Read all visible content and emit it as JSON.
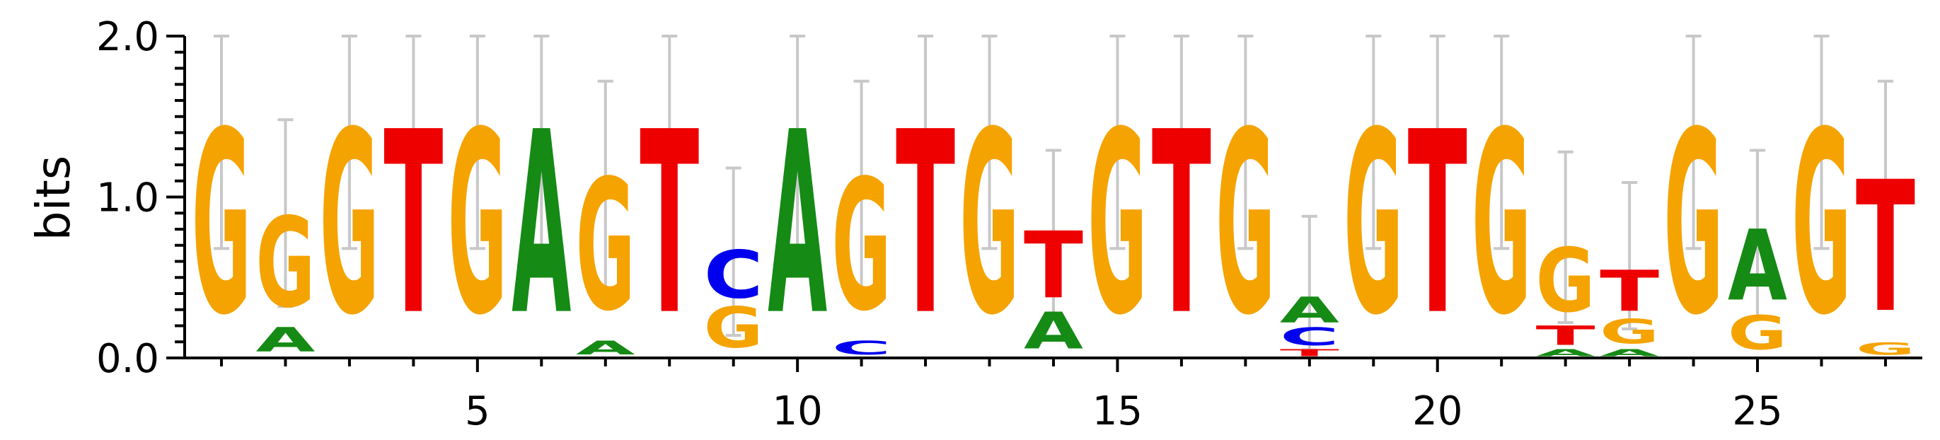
{
  "chart_data": {
    "type": "sequence-logo",
    "ylabel": "bits",
    "ylim": [
      0,
      2.0
    ],
    "yticks": [
      "0.0",
      "1.0",
      "2.0"
    ],
    "xticks": [
      "5",
      "10",
      "15",
      "20",
      "25"
    ],
    "xtick_values": [
      5,
      10,
      15,
      20,
      25
    ],
    "num_positions": 27,
    "colors": {
      "A": "#158a15",
      "C": "#0000ee",
      "G": "#f5a300",
      "T": "#ee0000",
      "error_bar": "#c8c8c8"
    },
    "positions": [
      {
        "pos": 1,
        "letters": [
          {
            "l": "G",
            "h": 1.34
          }
        ],
        "err": [
          0.68,
          2.0
        ]
      },
      {
        "pos": 2,
        "letters": [
          {
            "l": "A",
            "h": 0.18
          },
          {
            "l": "G",
            "h": 0.66
          }
        ],
        "err": [
          0.32,
          1.48
        ]
      },
      {
        "pos": 3,
        "letters": [
          {
            "l": "G",
            "h": 1.34
          }
        ],
        "err": [
          0.68,
          2.0
        ]
      },
      {
        "pos": 4,
        "letters": [
          {
            "l": "T",
            "h": 1.34
          }
        ],
        "err": [
          0.68,
          2.0
        ]
      },
      {
        "pos": 5,
        "letters": [
          {
            "l": "G",
            "h": 1.34
          }
        ],
        "err": [
          0.68,
          2.0
        ]
      },
      {
        "pos": 6,
        "letters": [
          {
            "l": "A",
            "h": 1.34
          }
        ],
        "err": [
          0.68,
          2.0
        ]
      },
      {
        "pos": 7,
        "letters": [
          {
            "l": "A",
            "h": 0.1
          },
          {
            "l": "G",
            "h": 0.96
          }
        ],
        "err": [
          0.42,
          1.72
        ]
      },
      {
        "pos": 8,
        "letters": [
          {
            "l": "T",
            "h": 1.34
          }
        ],
        "err": [
          0.68,
          2.0
        ]
      },
      {
        "pos": 9,
        "letters": [
          {
            "l": "G",
            "h": 0.3
          },
          {
            "l": "C",
            "h": 0.35
          }
        ],
        "err": [
          0.14,
          1.18
        ]
      },
      {
        "pos": 10,
        "letters": [
          {
            "l": "A",
            "h": 1.34
          }
        ],
        "err": [
          0.68,
          2.0
        ]
      },
      {
        "pos": 11,
        "letters": [
          {
            "l": "C",
            "h": 0.1
          },
          {
            "l": "G",
            "h": 0.96
          }
        ],
        "err": [
          0.42,
          1.72
        ]
      },
      {
        "pos": 12,
        "letters": [
          {
            "l": "T",
            "h": 1.34
          }
        ],
        "err": [
          0.68,
          2.0
        ]
      },
      {
        "pos": 13,
        "letters": [
          {
            "l": "G",
            "h": 1.34
          }
        ],
        "err": [
          0.68,
          2.0
        ]
      },
      {
        "pos": 14,
        "letters": [
          {
            "l": "A",
            "h": 0.27
          },
          {
            "l": "T",
            "h": 0.49
          }
        ],
        "err": [
          0.25,
          1.29
        ]
      },
      {
        "pos": 15,
        "letters": [
          {
            "l": "G",
            "h": 1.34
          }
        ],
        "err": [
          0.68,
          2.0
        ]
      },
      {
        "pos": 16,
        "letters": [
          {
            "l": "T",
            "h": 1.34
          }
        ],
        "err": [
          0.68,
          2.0
        ]
      },
      {
        "pos": 17,
        "letters": [
          {
            "l": "G",
            "h": 1.34
          }
        ],
        "err": [
          0.68,
          2.0
        ]
      },
      {
        "pos": 18,
        "letters": [
          {
            "l": "T",
            "h": 0.05
          },
          {
            "l": "C",
            "h": 0.13
          },
          {
            "l": "A",
            "h": 0.19
          }
        ],
        "err": [
          0.05,
          0.88
        ]
      },
      {
        "pos": 19,
        "letters": [
          {
            "l": "G",
            "h": 1.34
          }
        ],
        "err": [
          0.68,
          2.0
        ]
      },
      {
        "pos": 20,
        "letters": [
          {
            "l": "T",
            "h": 1.34
          }
        ],
        "err": [
          0.68,
          2.0
        ]
      },
      {
        "pos": 21,
        "letters": [
          {
            "l": "G",
            "h": 1.34
          }
        ],
        "err": [
          0.68,
          2.0
        ]
      },
      {
        "pos": 22,
        "letters": [
          {
            "l": "A",
            "h": 0.05
          },
          {
            "l": "T",
            "h": 0.14
          },
          {
            "l": "G",
            "h": 0.47
          }
        ],
        "err": [
          0.22,
          1.28
        ]
      },
      {
        "pos": 23,
        "letters": [
          {
            "l": "A",
            "h": 0.05
          },
          {
            "l": "G",
            "h": 0.18
          },
          {
            "l": "T",
            "h": 0.3
          }
        ],
        "err": [
          0.18,
          1.09
        ]
      },
      {
        "pos": 24,
        "letters": [
          {
            "l": "G",
            "h": 1.34
          }
        ],
        "err": [
          0.68,
          2.0
        ]
      },
      {
        "pos": 25,
        "letters": [
          {
            "l": "G",
            "h": 0.25
          },
          {
            "l": "A",
            "h": 0.52
          }
        ],
        "err": [
          0.25,
          1.29
        ]
      },
      {
        "pos": 26,
        "letters": [
          {
            "l": "G",
            "h": 1.34
          }
        ],
        "err": [
          0.68,
          2.0
        ]
      },
      {
        "pos": 27,
        "letters": [
          {
            "l": "G",
            "h": 0.09
          },
          {
            "l": "T",
            "h": 0.96
          }
        ],
        "err": [
          0.42,
          1.72
        ]
      }
    ]
  }
}
